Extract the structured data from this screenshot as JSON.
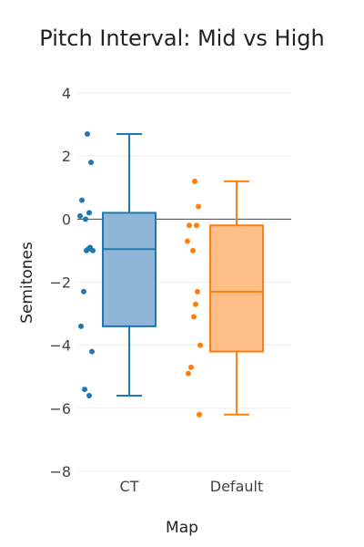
{
  "chart_data": {
    "type": "box",
    "title": "Pitch Interval: Mid vs High",
    "xlabel": "Map",
    "ylabel": "Semitones",
    "ylim": [
      -8,
      4
    ],
    "yticks": [
      4,
      2,
      0,
      -2,
      -4,
      -6,
      -8
    ],
    "ytick_labels": [
      "4",
      "2",
      "0",
      "−2",
      "−4",
      "−6",
      "−8"
    ],
    "grid": true,
    "zero_line": true,
    "categories": [
      "CT",
      "Default"
    ],
    "series": [
      {
        "category": "CT",
        "color": "#1f77b4",
        "fill": "#8fb6d8",
        "box": {
          "min": -5.6,
          "q1": -3.4,
          "median": -0.95,
          "q3": 0.2,
          "max": 2.7
        },
        "points": [
          2.7,
          1.8,
          0.6,
          0.2,
          0.1,
          0.0,
          -0.9,
          -0.95,
          -1.0,
          -1.0,
          -2.3,
          -3.4,
          -4.2,
          -5.4,
          -5.6
        ]
      },
      {
        "category": "Default",
        "color": "#ff7f0e",
        "fill": "#ffbf86",
        "box": {
          "min": -6.2,
          "q1": -4.2,
          "median": -2.3,
          "q3": -0.2,
          "max": 1.2
        },
        "points": [
          1.2,
          0.4,
          -0.2,
          -0.2,
          -0.7,
          -1.0,
          -2.3,
          -2.7,
          -3.1,
          -4.0,
          -4.7,
          -4.9,
          -6.2
        ]
      }
    ]
  }
}
